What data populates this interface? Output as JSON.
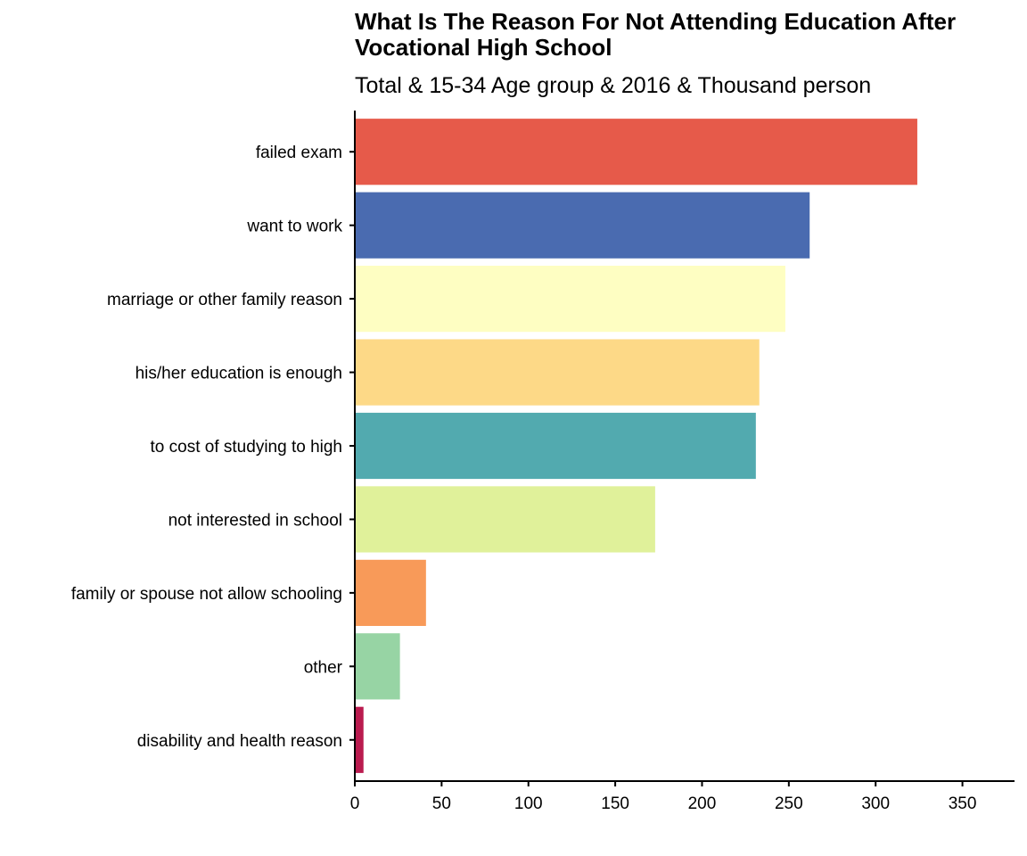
{
  "chart_data": {
    "type": "bar",
    "orientation": "horizontal",
    "title": "What Is The Reason For Not Attending Education After Vocational High School",
    "subtitle": "Total & 15-34 Age group & 2016 & Thousand person",
    "xlabel": "",
    "ylabel": "",
    "xlim": [
      0,
      380
    ],
    "x_ticks": [
      0,
      50,
      100,
      150,
      200,
      250,
      300,
      350
    ],
    "grid": false,
    "legend": "none",
    "categories": [
      "failed exam",
      "want to work",
      "marriage or other family reason",
      "his/her education is enough",
      "to cost of studying to high",
      "not interested in school",
      "family or spouse not allow schooling",
      "other",
      "disability and health reason"
    ],
    "values": [
      324,
      262,
      248,
      233,
      231,
      173,
      41,
      26,
      5
    ],
    "colors": [
      "#E65A4A",
      "#4A6BB0",
      "#FEFEC2",
      "#FDD987",
      "#52AAAF",
      "#E0F19A",
      "#F89A59",
      "#97D4A4",
      "#BA1B4F"
    ]
  }
}
